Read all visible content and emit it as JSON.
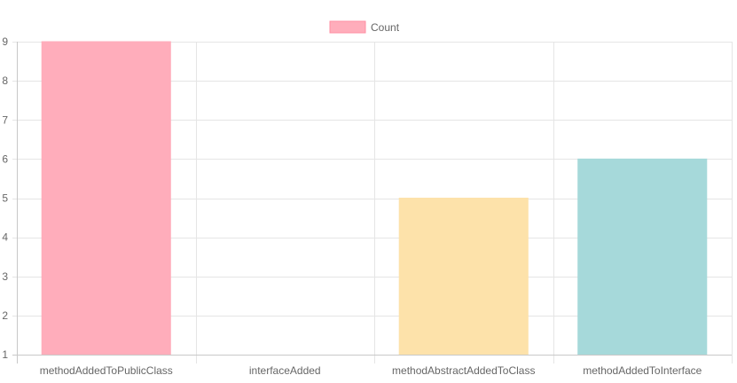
{
  "chart_data": {
    "type": "bar",
    "categories": [
      "methodAddedToPublicClass",
      "interfaceAdded",
      "methodAbstractAddedToClass",
      "methodAddedToInterface"
    ],
    "series": [
      {
        "name": "Count",
        "values": [
          9,
          1,
          5,
          6
        ]
      }
    ],
    "bar_colors": [
      "#ffadbb",
      "#ffffff",
      "#fde2aa",
      "#a6d9da"
    ],
    "bar_border_colors": [
      "#ffadbb",
      "#ffffff",
      "#fde2aa",
      "#a6d9da"
    ],
    "legend": {
      "position": "top",
      "label": "Count",
      "swatch_fill": "#ffadbb",
      "swatch_border": "#ff8fa3"
    },
    "ylim": [
      1,
      9
    ],
    "yticks": [
      1,
      2,
      3,
      4,
      5,
      6,
      7,
      8,
      9
    ],
    "grid": true,
    "grid_color": "#e5e5e5",
    "axis_color": "#c8c8c8"
  }
}
